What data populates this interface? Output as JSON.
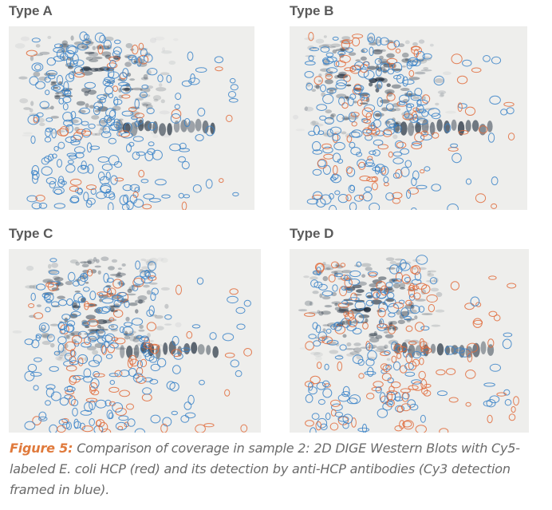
{
  "panels": [
    {
      "label": "Type A",
      "red_share": 0.15
    },
    {
      "label": "Type B",
      "red_share": 0.35
    },
    {
      "label": "Type C",
      "red_share": 0.3
    },
    {
      "label": "Type D",
      "red_share": 0.55
    }
  ],
  "caption": {
    "lead": "Figure 5:",
    "text": " Comparison of coverage in sample 2: 2D DIGE Western Blots with Cy5-labeled E. coli HCP (red) and its detection by anti-HCP antibodies (Cy3 detection framed in blue)."
  },
  "colors": {
    "blue_outline": "#3a82c8",
    "red_outline": "#e06a3a",
    "spot": "#1f2d3d",
    "label": "#5a5a5a",
    "caption_lead": "#e07a3c"
  }
}
